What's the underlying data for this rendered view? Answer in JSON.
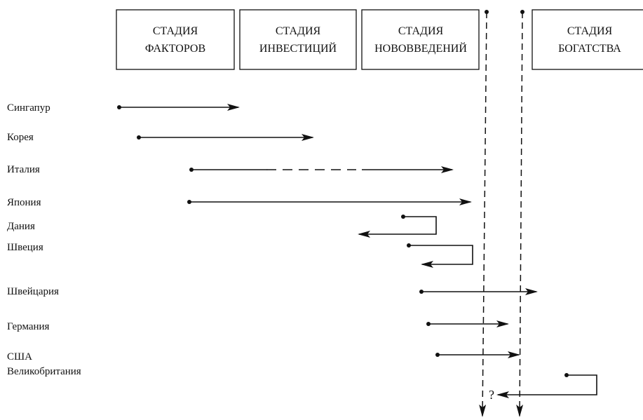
{
  "stages": [
    {
      "line1": "СТАДИЯ",
      "line2": "ФАКТОРОВ"
    },
    {
      "line1": "СТАДИЯ",
      "line2": "ИНВЕСТИЦИЙ"
    },
    {
      "line1": "СТАДИЯ",
      "line2": "НОВОВВЕДЕНИЙ"
    },
    {
      "line1": "СТАДИЯ",
      "line2": "БОГАТСТВА"
    }
  ],
  "countries": [
    "Сингапур",
    "Корея",
    "Италия",
    "Япония",
    "Дания",
    "Швеция",
    "Швейцария",
    "Германия",
    "США",
    "Великобритания"
  ],
  "question_mark": "?"
}
